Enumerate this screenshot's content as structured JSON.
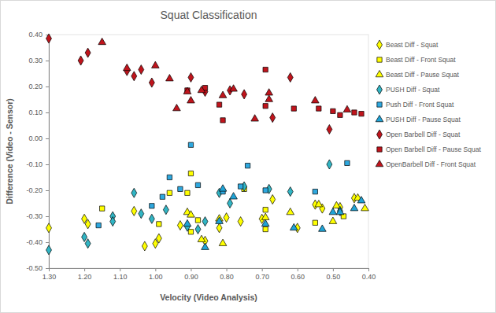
{
  "chart_data": {
    "type": "scatter",
    "title": "Squat Classification",
    "x_label": "Velocity (Video Analysis)",
    "y_label": "Difference (Video - Sensor)",
    "xlim": [
      1.3,
      0.4
    ],
    "ylim": [
      -0.5,
      0.4
    ],
    "xticks": [
      {
        "value": 1.3,
        "label": "1.30"
      },
      {
        "value": 1.2,
        "label": "1.20"
      },
      {
        "value": 1.1,
        "label": "1.10"
      },
      {
        "value": 1.0,
        "label": "1.00"
      },
      {
        "value": 0.9,
        "label": "0.90"
      },
      {
        "value": 0.8,
        "label": "0.80"
      },
      {
        "value": 0.7,
        "label": "0.70"
      },
      {
        "value": 0.6,
        "label": "0.60"
      },
      {
        "value": 0.5,
        "label": "0.50"
      },
      {
        "value": 0.4,
        "label": "0.40"
      }
    ],
    "yticks": [
      {
        "value": -0.5,
        "label": "-0.50"
      },
      {
        "value": -0.4,
        "label": "-0.40"
      },
      {
        "value": -0.3,
        "label": "-0.30"
      },
      {
        "value": -0.2,
        "label": "-0.20"
      },
      {
        "value": -0.1,
        "label": "-0.10"
      },
      {
        "value": 0,
        "label": "0.00"
      },
      {
        "value": 0.1,
        "label": "0.10"
      },
      {
        "value": 0.2,
        "label": "0.20"
      },
      {
        "value": 0.3,
        "label": "0.30"
      },
      {
        "value": 0.4,
        "label": "0.40"
      }
    ],
    "grid": false,
    "legend": "right",
    "series": [
      {
        "name": "Beast Diff - Squat",
        "color": "#ffff00",
        "marker": "diamond",
        "x": [
          1.3,
          1.2,
          1.19,
          1.06,
          1.03,
          1.0,
          0.99,
          0.93,
          0.86,
          0.82,
          0.8,
          0.76,
          0.7,
          0.67,
          0.6,
          0.55,
          0.53,
          0.48,
          0.44
        ],
        "values": [
          -0.345,
          -0.31,
          -0.33,
          -0.28,
          -0.415,
          -0.405,
          -0.385,
          -0.335,
          -0.395,
          -0.345,
          -0.305,
          -0.32,
          -0.31,
          -0.235,
          -0.345,
          -0.255,
          -0.27,
          -0.265,
          -0.23
        ]
      },
      {
        "name": "Beast Diff - Front Squat",
        "color": "#ffff00",
        "marker": "square",
        "x": [
          1.15,
          0.99,
          0.96,
          0.91,
          0.9,
          0.9,
          0.88,
          0.75,
          0.69,
          0.69,
          0.55,
          0.47
        ],
        "values": [
          -0.27,
          -0.33,
          -0.21,
          -0.21,
          -0.135,
          -0.36,
          -0.315,
          -0.195,
          -0.275,
          -0.35,
          -0.325,
          -0.3
        ]
      },
      {
        "name": "Beast Diff - Pause Squat",
        "color": "#ffff00",
        "marker": "triangle",
        "x": [
          0.91,
          0.9,
          0.87,
          0.82,
          0.81,
          0.69,
          0.62,
          0.54,
          0.5,
          0.49,
          0.43,
          0.41
        ],
        "values": [
          -0.285,
          -0.295,
          -0.39,
          -0.31,
          -0.405,
          -0.305,
          -0.285,
          -0.255,
          -0.32,
          -0.26,
          -0.23,
          -0.27
        ]
      },
      {
        "name": "PUSH Diff - Squat",
        "color": "#31b5c4",
        "marker": "diamond",
        "x": [
          1.3,
          1.2,
          1.19,
          1.12,
          1.12,
          1.06,
          1.04,
          1.01,
          0.97,
          0.91,
          0.88,
          0.86,
          0.82,
          0.79,
          0.75,
          0.68,
          0.62,
          0.51,
          0.48
        ],
        "values": [
          -0.43,
          -0.38,
          -0.405,
          -0.3,
          -0.32,
          -0.21,
          -0.29,
          -0.31,
          -0.275,
          -0.34,
          -0.35,
          -0.32,
          -0.21,
          -0.25,
          -0.185,
          -0.195,
          -0.205,
          -0.1,
          -0.28
        ]
      },
      {
        "name": "Push Diff - Front Squat",
        "color": "#2ea8df",
        "marker": "square",
        "x": [
          1.16,
          1.01,
          0.98,
          0.96,
          0.93,
          0.9,
          0.88,
          0.81,
          0.76,
          0.74,
          0.69,
          0.55,
          0.46
        ],
        "values": [
          -0.335,
          -0.26,
          -0.225,
          -0.15,
          -0.195,
          -0.025,
          -0.18,
          -0.205,
          -0.185,
          -0.105,
          -0.2,
          -0.205,
          -0.095
        ]
      },
      {
        "name": "PUSH Diff - Pause Squat",
        "color": "#1fa3d6",
        "marker": "triangle",
        "x": [
          0.91,
          0.86,
          0.82,
          0.81,
          0.78,
          0.69,
          0.61,
          0.53,
          0.5,
          0.48,
          0.44,
          0.42
        ],
        "values": [
          -0.33,
          -0.42,
          -0.32,
          -0.195,
          -0.225,
          -0.33,
          -0.345,
          -0.35,
          -0.285,
          -0.285,
          -0.27,
          -0.24
        ]
      },
      {
        "name": "Open Barbell Diff - Squat",
        "color": "#c0141c",
        "marker": "diamond",
        "x": [
          1.3,
          1.21,
          1.19,
          1.08,
          1.06,
          1.04,
          1.01,
          0.9,
          0.86,
          0.79,
          0.75,
          0.67,
          0.62,
          0.51
        ],
        "values": [
          0.385,
          0.3,
          0.33,
          0.26,
          0.24,
          0.265,
          0.215,
          0.235,
          0.18,
          0.185,
          0.17,
          0.08,
          0.235,
          0.035
        ]
      },
      {
        "name": "Open Barbell Diff - Pause Squat",
        "color": "#c0141c",
        "marker": "square",
        "x": [
          0.91,
          0.86,
          0.82,
          0.81,
          0.69,
          0.69,
          0.61,
          0.54,
          0.5,
          0.48,
          0.44,
          0.42
        ],
        "values": [
          0.185,
          0.195,
          0.13,
          0.07,
          0.265,
          0.125,
          0.115,
          0.115,
          0.105,
          0.09,
          0.1,
          0.095
        ]
      },
      {
        "name": "OpenBarbell Diff - Front Squat",
        "color": "#c0141c",
        "marker": "triangle",
        "x": [
          1.15,
          1.08,
          1.0,
          0.96,
          0.94,
          0.91,
          0.9,
          0.87,
          0.81,
          0.78,
          0.72,
          0.68,
          0.68,
          0.55,
          0.46
        ],
        "values": [
          0.37,
          0.27,
          0.28,
          0.23,
          0.115,
          0.18,
          0.145,
          0.185,
          0.165,
          0.19,
          0.075,
          0.175,
          0.15,
          0.145,
          0.11
        ]
      }
    ]
  }
}
